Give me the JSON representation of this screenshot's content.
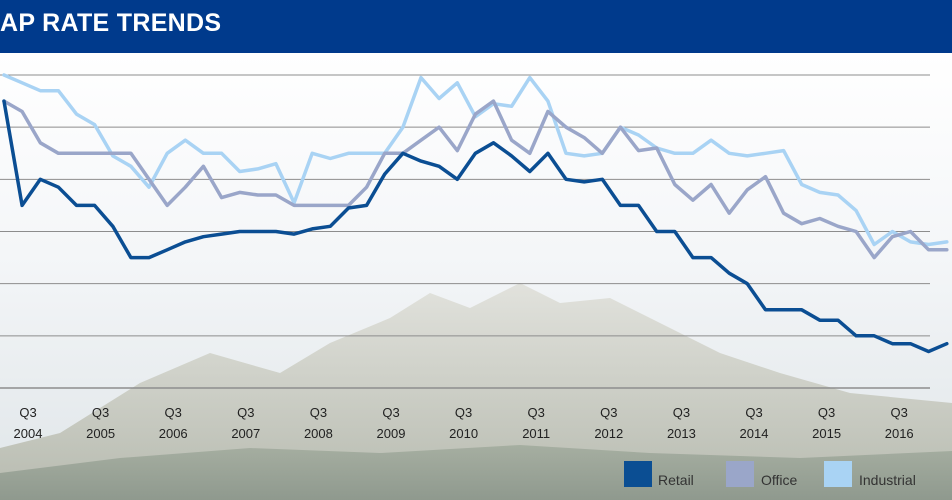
{
  "header": {
    "title": "AP RATE TRENDS"
  },
  "colors": {
    "header_bg": "#003a8c",
    "retail": "#0b4e93",
    "office": "#9aa6c9",
    "industrial": "#a9d3f4",
    "grid": "#8d8d8d"
  },
  "chart_data": {
    "type": "line",
    "title": "AP RATE TRENDS",
    "xlabel": "",
    "ylabel": "",
    "grid": true,
    "legend_position": "bottom-right",
    "x_tick_labels": [
      {
        "q": "Q3",
        "year": "2004"
      },
      {
        "q": "Q3",
        "year": "2005"
      },
      {
        "q": "Q3",
        "year": "2006"
      },
      {
        "q": "Q3",
        "year": "2007"
      },
      {
        "q": "Q3",
        "year": "2008"
      },
      {
        "q": "Q3",
        "year": "2009"
      },
      {
        "q": "Q3",
        "year": "2010"
      },
      {
        "q": "Q3",
        "year": "2011"
      },
      {
        "q": "Q3",
        "year": "2012"
      },
      {
        "q": "Q3",
        "year": "2013"
      },
      {
        "q": "Q3",
        "year": "2014"
      },
      {
        "q": "Q3",
        "year": "2015"
      },
      {
        "q": "Q3",
        "year": "2016"
      }
    ],
    "x_start": 2004.0,
    "x_step": 0.25,
    "ylim": [
      3,
      9
    ],
    "y_gridlines": [
      3,
      4,
      5,
      6,
      7,
      8,
      9
    ],
    "series": [
      {
        "name": "Retail",
        "values": [
          8.5,
          6.5,
          7.0,
          6.85,
          6.5,
          6.5,
          6.1,
          5.5,
          5.5,
          5.65,
          5.8,
          5.9,
          5.95,
          6.0,
          6.0,
          6.0,
          5.95,
          6.05,
          6.1,
          6.45,
          6.5,
          7.1,
          7.5,
          7.35,
          7.25,
          7.0,
          7.5,
          7.7,
          7.45,
          7.15,
          7.5,
          7.0,
          6.95,
          7.0,
          6.5,
          6.5,
          6.0,
          6.0,
          5.5,
          5.5,
          5.2,
          5.0,
          4.5,
          4.5,
          4.5,
          4.3,
          4.3,
          4.0,
          4.0,
          3.85,
          3.85,
          3.7,
          3.85
        ]
      },
      {
        "name": "Office",
        "values": [
          8.5,
          8.3,
          7.7,
          7.5,
          7.5,
          7.5,
          7.5,
          7.5,
          7.0,
          6.5,
          6.85,
          7.25,
          6.65,
          6.75,
          6.7,
          6.7,
          6.5,
          6.5,
          6.5,
          6.5,
          6.85,
          7.5,
          7.5,
          7.75,
          8.0,
          7.55,
          8.25,
          8.5,
          7.75,
          7.5,
          8.3,
          8.0,
          7.8,
          7.5,
          8.0,
          7.55,
          7.6,
          6.9,
          6.6,
          6.9,
          6.35,
          6.8,
          7.05,
          6.35,
          6.15,
          6.25,
          6.1,
          6.0,
          5.5,
          5.9,
          6.0,
          5.65,
          5.65
        ]
      },
      {
        "name": "Industrial",
        "values": [
          9.0,
          8.85,
          8.7,
          8.7,
          8.25,
          8.05,
          7.45,
          7.25,
          6.85,
          7.5,
          7.75,
          7.5,
          7.5,
          7.15,
          7.2,
          7.3,
          6.55,
          7.5,
          7.4,
          7.5,
          7.5,
          7.5,
          8.0,
          8.95,
          8.55,
          8.85,
          8.2,
          8.45,
          8.4,
          8.95,
          8.5,
          7.5,
          7.45,
          7.5,
          8.0,
          7.85,
          7.6,
          7.5,
          7.5,
          7.75,
          7.5,
          7.45,
          7.5,
          7.55,
          6.9,
          6.75,
          6.7,
          6.4,
          5.75,
          6.0,
          5.8,
          5.75,
          5.8
        ]
      }
    ]
  }
}
